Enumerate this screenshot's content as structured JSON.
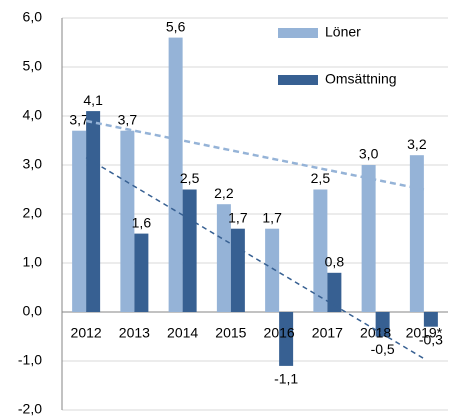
{
  "chart_data": {
    "type": "bar",
    "categories": [
      "2012",
      "2013",
      "2014",
      "2015",
      "2016",
      "2017",
      "2018",
      "2019*"
    ],
    "series": [
      {
        "name": "Löner",
        "color": "#95b3d7",
        "values": [
          3.7,
          3.7,
          5.6,
          2.2,
          1.7,
          2.5,
          3.0,
          3.2
        ],
        "value_labels": [
          "3,7",
          "3,7",
          "5,6",
          "2,2",
          "1,7",
          "2,5",
          "3,0",
          "3,2"
        ]
      },
      {
        "name": "Omsättning",
        "color": "#376092",
        "values": [
          4.1,
          1.6,
          2.5,
          1.7,
          -1.1,
          0.8,
          -0.5,
          -0.3
        ],
        "value_labels": [
          "4,1",
          "1,6",
          "2,5",
          "1,7",
          "-1,1",
          "0,8",
          "-0,5",
          "-0,3"
        ]
      }
    ],
    "ylim": [
      -2,
      6
    ],
    "yticks": [
      {
        "value": -2,
        "label": "-2,0"
      },
      {
        "value": -1,
        "label": "-1,0"
      },
      {
        "value": 0,
        "label": "0,0"
      },
      {
        "value": 1,
        "label": "1,0"
      },
      {
        "value": 2,
        "label": "2,0"
      },
      {
        "value": 3,
        "label": "3,0"
      },
      {
        "value": 4,
        "label": "4,0"
      },
      {
        "value": 5,
        "label": "5,0"
      },
      {
        "value": 6,
        "label": "6,0"
      }
    ],
    "grid": true,
    "legend": "top-right",
    "trendline": "linear"
  }
}
